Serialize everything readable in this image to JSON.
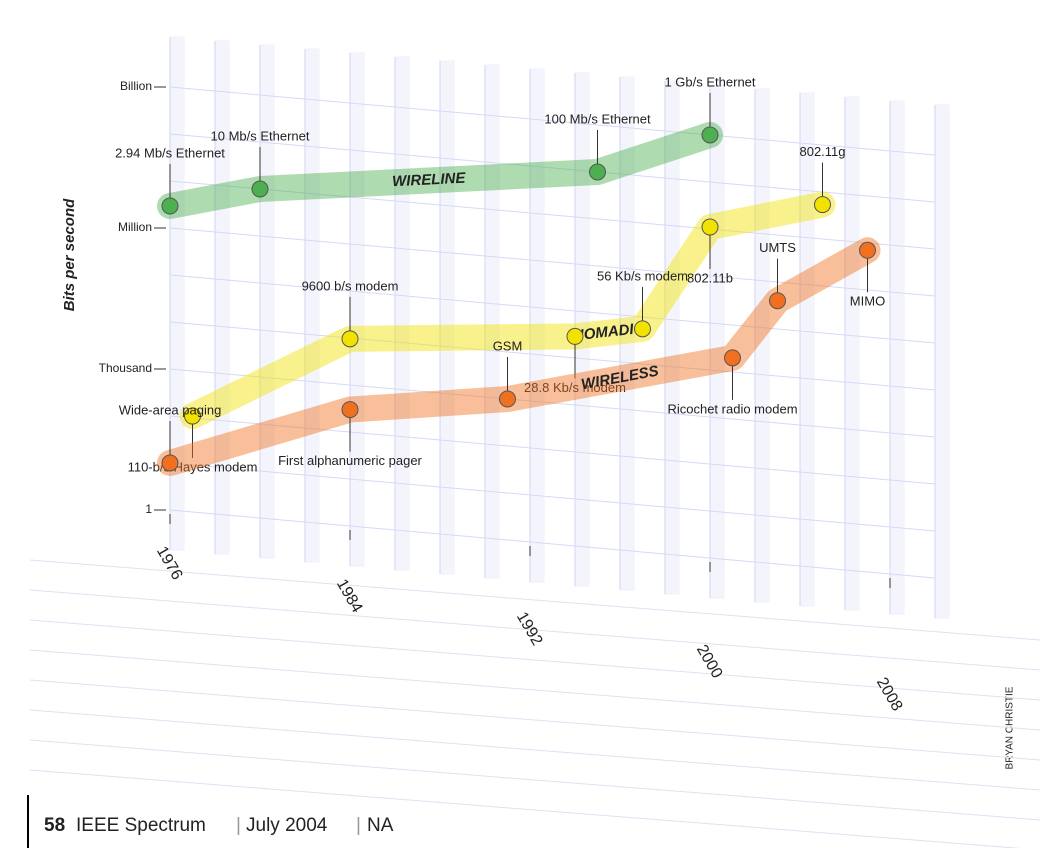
{
  "chart_data": {
    "type": "scatter",
    "y_label": "Bits per second",
    "ylim": [
      1,
      1000000000
    ],
    "log_y": true,
    "yticks": [
      1,
      {
        "value": 1000,
        "label": "Thousand"
      },
      {
        "value": 1000000,
        "label": "Million"
      },
      {
        "value": 1000000000,
        "label": "Billion"
      }
    ],
    "xlim": [
      1976,
      2010
    ],
    "xticks": [
      1976,
      1984,
      1992,
      2000,
      2008
    ],
    "series": [
      {
        "name": "WIRELINE",
        "color": "#4caf50",
        "x": [
          1976,
          1980,
          1995,
          2000
        ],
        "values": [
          2940000,
          10000000,
          100000000,
          1000000000
        ],
        "labels": [
          "2.94 Mb/s Ethernet",
          "10 Mb/s Ethernet",
          "100 Mb/s Ethernet",
          "1 Gb/s Ethernet"
        ]
      },
      {
        "name": "NOMADIC",
        "color": "#f2e200",
        "x": [
          1977,
          1984,
          1994,
          1997,
          2000,
          2005
        ],
        "values": [
          110,
          9600,
          28800,
          56000,
          11000000,
          54000000
        ],
        "labels": [
          "110-b/s Hayes modem",
          "9600 b/s modem",
          "28.8 Kb/s modem",
          "56 Kb/s modem",
          "802.11b",
          "802.11g"
        ]
      },
      {
        "name": "WIRELESS",
        "color": "#f07020",
        "x": [
          1976,
          1984,
          1991,
          2001,
          2003,
          2007
        ],
        "values": [
          10,
          300,
          1000,
          20000,
          400000,
          7000000
        ],
        "labels": [
          "Wide-area paging",
          "First alphanumeric pager",
          "GSM",
          "Ricochet radio modem",
          "UMTS",
          "MIMO"
        ]
      }
    ],
    "credit": "BRYAN CHRISTIE"
  },
  "footer": {
    "page": "58",
    "publication": "IEEE Spectrum",
    "date": "July 2004",
    "edition": "NA"
  }
}
